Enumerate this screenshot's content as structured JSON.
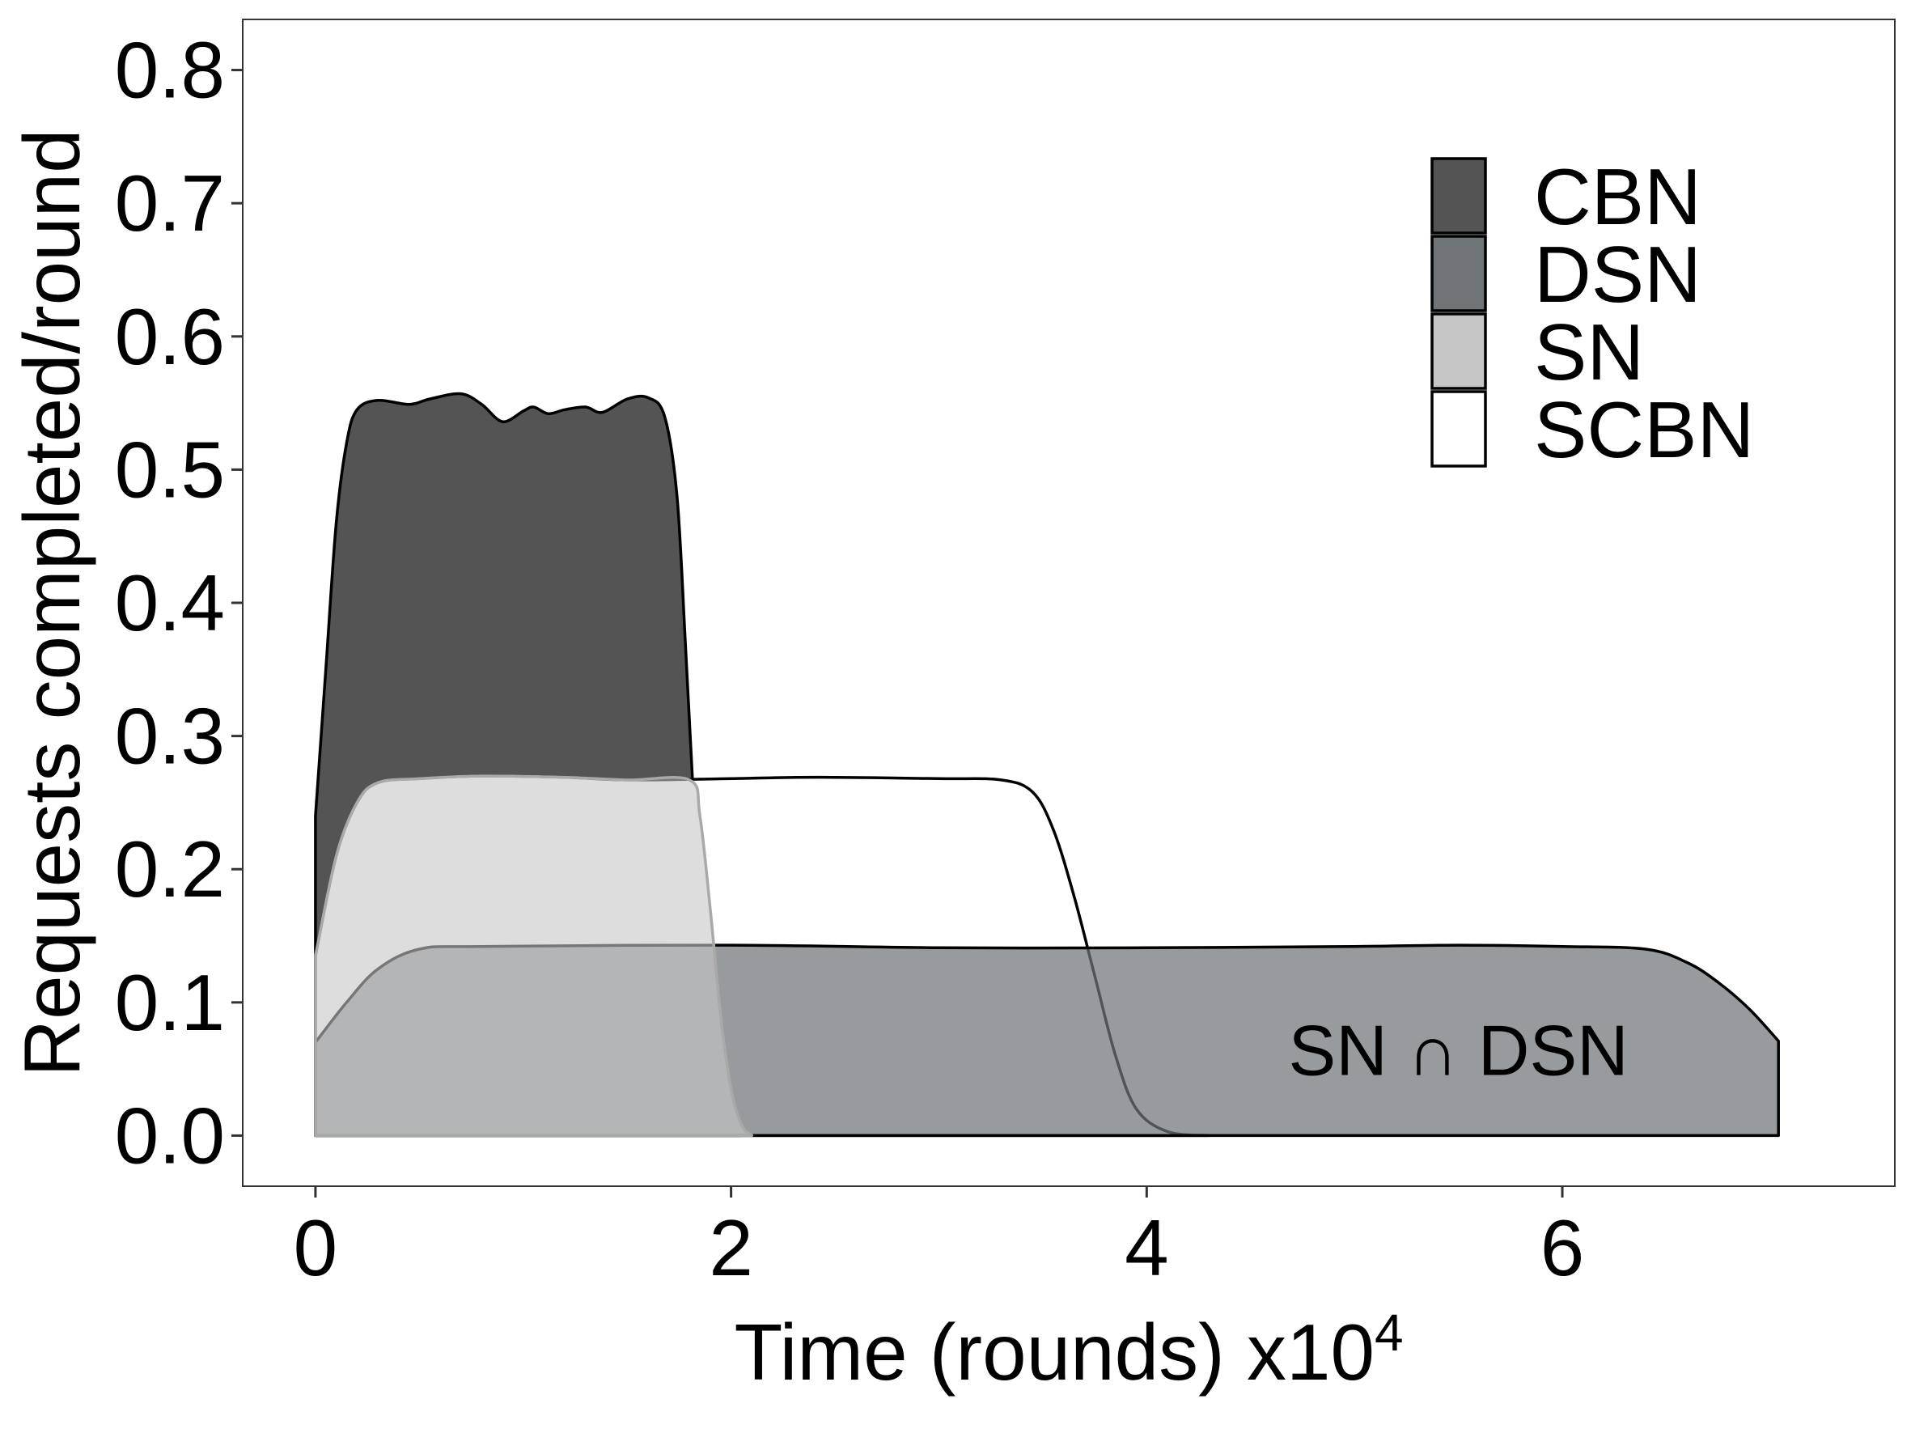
{
  "chart_data": {
    "type": "area",
    "xlabel": "Time (rounds) x10",
    "xlabel_superscript": "4",
    "ylabel": "Requests completed/round",
    "xlim": [
      -0.35,
      7.6
    ],
    "ylim": [
      -0.038,
      0.838
    ],
    "x_ticks": [
      {
        "value": 0,
        "label": "0"
      },
      {
        "value": 2,
        "label": "2"
      },
      {
        "value": 4,
        "label": "4"
      },
      {
        "value": 6,
        "label": "6"
      }
    ],
    "y_ticks": [
      {
        "value": 0.0,
        "label": "0.0"
      },
      {
        "value": 0.1,
        "label": "0.1"
      },
      {
        "value": 0.2,
        "label": "0.2"
      },
      {
        "value": 0.3,
        "label": "0.3"
      },
      {
        "value": 0.4,
        "label": "0.4"
      },
      {
        "value": 0.5,
        "label": "0.5"
      },
      {
        "value": 0.6,
        "label": "0.6"
      },
      {
        "value": 0.7,
        "label": "0.7"
      },
      {
        "value": 0.8,
        "label": "0.8"
      }
    ],
    "grid": false,
    "legend_position": "top-right",
    "series": [
      {
        "name": "CBN",
        "color": "#545454",
        "opacity": 1,
        "stroke": "#000000",
        "points": [
          [
            0,
            0.24
          ],
          [
            0.05,
            0.35
          ],
          [
            0.1,
            0.46
          ],
          [
            0.15,
            0.52
          ],
          [
            0.2,
            0.545
          ],
          [
            0.3,
            0.552
          ],
          [
            0.45,
            0.549
          ],
          [
            0.55,
            0.553
          ],
          [
            0.7,
            0.557
          ],
          [
            0.8,
            0.549
          ],
          [
            0.9,
            0.536
          ],
          [
            1.0,
            0.544
          ],
          [
            1.05,
            0.547
          ],
          [
            1.12,
            0.542
          ],
          [
            1.2,
            0.545
          ],
          [
            1.3,
            0.547
          ],
          [
            1.38,
            0.543
          ],
          [
            1.5,
            0.553
          ],
          [
            1.6,
            0.554
          ],
          [
            1.68,
            0.54
          ],
          [
            1.74,
            0.48
          ],
          [
            1.78,
            0.37
          ],
          [
            1.82,
            0.25
          ],
          [
            1.86,
            0.14
          ],
          [
            1.9,
            0.065
          ],
          [
            1.95,
            0.02
          ],
          [
            2.0,
            0.005
          ],
          [
            2.05,
            0.0
          ]
        ]
      },
      {
        "name": "SCBN",
        "color": "#ffffff",
        "opacity": 1,
        "stroke": "#000000",
        "points": [
          [
            0,
            0.135
          ],
          [
            0.1,
            0.21
          ],
          [
            0.2,
            0.25
          ],
          [
            0.3,
            0.265
          ],
          [
            0.5,
            0.268
          ],
          [
            0.8,
            0.27
          ],
          [
            1.2,
            0.269
          ],
          [
            1.5,
            0.267
          ],
          [
            2.0,
            0.268
          ],
          [
            2.4,
            0.269
          ],
          [
            3.0,
            0.268
          ],
          [
            3.3,
            0.267
          ],
          [
            3.45,
            0.258
          ],
          [
            3.55,
            0.23
          ],
          [
            3.65,
            0.18
          ],
          [
            3.75,
            0.12
          ],
          [
            3.85,
            0.06
          ],
          [
            3.95,
            0.02
          ],
          [
            4.1,
            0.003
          ],
          [
            4.3,
            0.0
          ]
        ]
      },
      {
        "name": "DSN",
        "color": "#6f7477",
        "opacity": 0.72,
        "stroke": "#000000",
        "points": [
          [
            0,
            0.07
          ],
          [
            0.15,
            0.1
          ],
          [
            0.3,
            0.125
          ],
          [
            0.5,
            0.14
          ],
          [
            0.8,
            0.142
          ],
          [
            2.0,
            0.143
          ],
          [
            3.0,
            0.141
          ],
          [
            4.0,
            0.141
          ],
          [
            5.0,
            0.142
          ],
          [
            5.5,
            0.143
          ],
          [
            6.0,
            0.142
          ],
          [
            6.4,
            0.14
          ],
          [
            6.6,
            0.13
          ],
          [
            6.75,
            0.115
          ],
          [
            6.9,
            0.095
          ],
          [
            7.04,
            0.071
          ]
        ]
      },
      {
        "name": "SN",
        "color": "#c6c6c6",
        "opacity": 0.6,
        "stroke": "#a9a9a9",
        "points": [
          [
            0,
            0.135
          ],
          [
            0.1,
            0.21
          ],
          [
            0.2,
            0.25
          ],
          [
            0.3,
            0.265
          ],
          [
            0.5,
            0.268
          ],
          [
            0.8,
            0.27
          ],
          [
            1.2,
            0.269
          ],
          [
            1.5,
            0.267
          ],
          [
            1.8,
            0.267
          ],
          [
            1.85,
            0.24
          ],
          [
            1.9,
            0.17
          ],
          [
            1.95,
            0.09
          ],
          [
            2.0,
            0.035
          ],
          [
            2.05,
            0.008
          ],
          [
            2.1,
            0.0
          ]
        ]
      }
    ],
    "annotations": [
      {
        "text": "SN ∩ DSN",
        "x": 5.5,
        "y": 0.065
      }
    ]
  }
}
